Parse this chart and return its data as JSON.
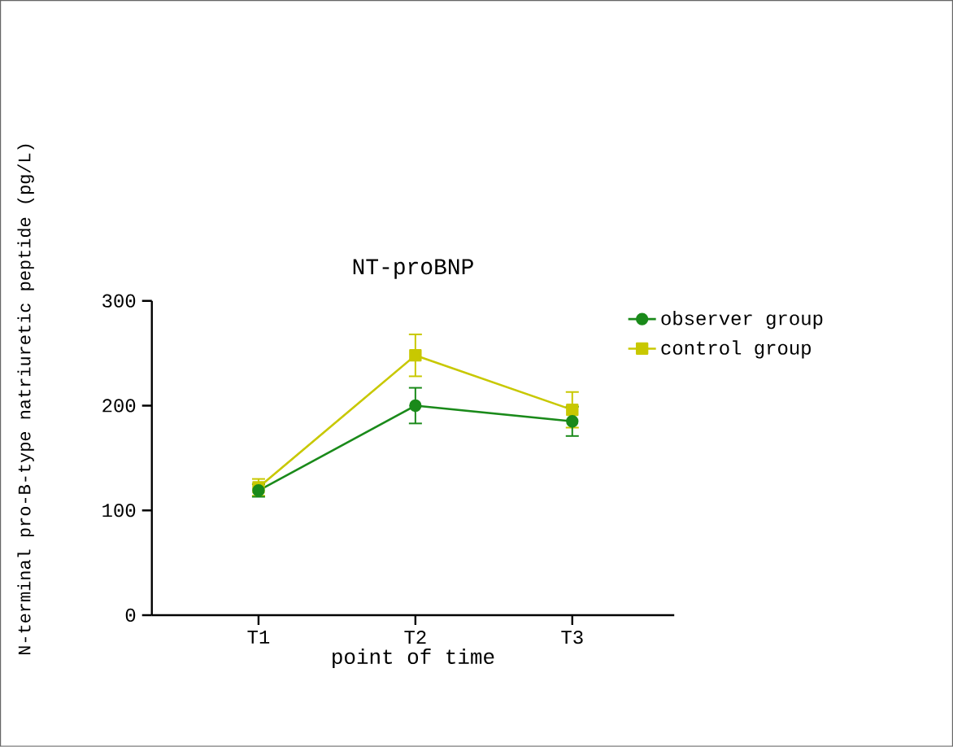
{
  "chart_data": {
    "type": "line",
    "title": "NT-proBNP",
    "xlabel": "point of time",
    "ylabel": "N-terminal pro-B-type natriuretic peptide (pg/L)",
    "categories": [
      "T1",
      "T2",
      "T3"
    ],
    "series": [
      {
        "name": "observer group",
        "color": "#1a8a1a",
        "marker": "circle",
        "values": [
          119,
          200,
          185
        ],
        "errors": [
          6,
          17,
          14
        ]
      },
      {
        "name": "control group",
        "color": "#c8c800",
        "marker": "square",
        "values": [
          122,
          248,
          196
        ],
        "errors": [
          8,
          20,
          17
        ]
      }
    ],
    "ylim": [
      0,
      300
    ],
    "yticks": [
      0,
      100,
      200,
      300
    ],
    "legend": "top right",
    "line_style": "solid"
  }
}
